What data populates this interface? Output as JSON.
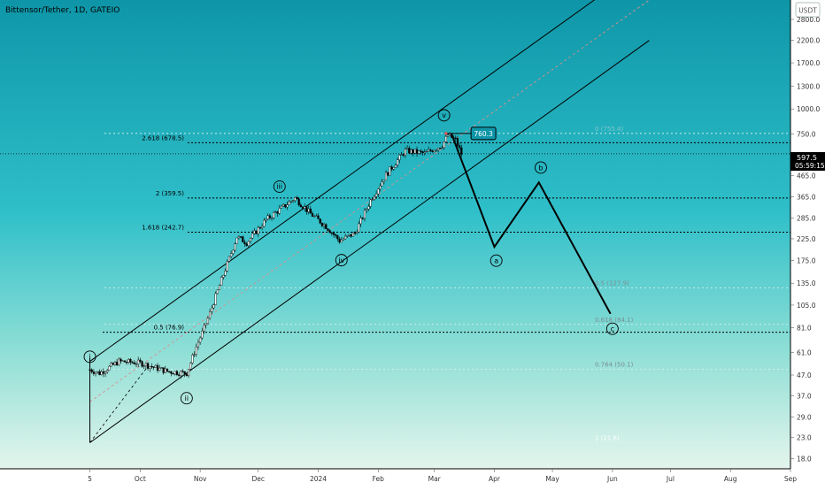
{
  "chart_title": "Bittensor/Tether, 1D, GATEIO",
  "currency_badge": "USDT",
  "last_price": "597.5",
  "countdown": "05:59:15",
  "price_flag_label": "760.3",
  "colors": {
    "bg_top": "#0e96a8",
    "bg_mid": "#2fbfc9",
    "bg_bottom": "#dff3ea",
    "axis_bg": "#ffffff",
    "ink": "#000000",
    "fib_text": "#ffffff"
  },
  "chart_data": {
    "type": "candlestick",
    "scale": "log",
    "ylim": [
      16,
      3500
    ],
    "y_ticks": [
      {
        "v": 18.0,
        "label": "18.0"
      },
      {
        "v": 23.0,
        "label": "23.0"
      },
      {
        "v": 29.0,
        "label": "29.0"
      },
      {
        "v": 37.0,
        "label": "37.0"
      },
      {
        "v": 47.0,
        "label": "47.0"
      },
      {
        "v": 61.0,
        "label": "61.0"
      },
      {
        "v": 81.0,
        "label": "81.0"
      },
      {
        "v": 105.0,
        "label": "105.0"
      },
      {
        "v": 135.0,
        "label": "135.0"
      },
      {
        "v": 175.0,
        "label": "175.0"
      },
      {
        "v": 225.0,
        "label": "225.0"
      },
      {
        "v": 285.0,
        "label": "285.0"
      },
      {
        "v": 365.0,
        "label": "365.0"
      },
      {
        "v": 465.0,
        "label": "465.0"
      },
      {
        "v": 750.0,
        "label": "750.0"
      },
      {
        "v": 1000.0,
        "label": "1000.0"
      },
      {
        "v": 1300.0,
        "label": "1300.0"
      },
      {
        "v": 1700.0,
        "label": "1700.0"
      },
      {
        "v": 2200.0,
        "label": "2200.0"
      },
      {
        "v": 2800.0,
        "label": "2800.0"
      }
    ],
    "x_ticks": [
      {
        "d": "2023-09-05",
        "label": "5"
      },
      {
        "d": "2023-10-01",
        "label": "Oct"
      },
      {
        "d": "2023-11-01",
        "label": "Nov"
      },
      {
        "d": "2023-12-01",
        "label": "Dec"
      },
      {
        "d": "2024-01-01",
        "label": "2024"
      },
      {
        "d": "2024-02-01",
        "label": "Feb"
      },
      {
        "d": "2024-03-01",
        "label": "Mar"
      },
      {
        "d": "2024-04-01",
        "label": "Apr"
      },
      {
        "d": "2024-05-01",
        "label": "May"
      },
      {
        "d": "2024-06-01",
        "label": "Jun"
      },
      {
        "d": "2024-07-01",
        "label": "Jul"
      },
      {
        "d": "2024-08-01",
        "label": "Aug"
      },
      {
        "d": "2024-09-01",
        "label": "Sep"
      }
    ],
    "x_range": [
      "2023-08-01",
      "2024-09-01"
    ],
    "price_anchors": [
      [
        "2023-09-05",
        50
      ],
      [
        "2023-09-10",
        48
      ],
      [
        "2023-09-20",
        55
      ],
      [
        "2023-10-01",
        54
      ],
      [
        "2023-10-15",
        49
      ],
      [
        "2023-10-25",
        48
      ],
      [
        "2023-10-30",
        65
      ],
      [
        "2023-11-05",
        90
      ],
      [
        "2023-11-12",
        140
      ],
      [
        "2023-11-20",
        230
      ],
      [
        "2023-11-25",
        215
      ],
      [
        "2023-12-05",
        280
      ],
      [
        "2023-12-15",
        330
      ],
      [
        "2023-12-20",
        360
      ],
      [
        "2023-12-28",
        300
      ],
      [
        "2024-01-05",
        260
      ],
      [
        "2024-01-12",
        220
      ],
      [
        "2024-01-20",
        240
      ],
      [
        "2024-01-28",
        350
      ],
      [
        "2024-02-05",
        470
      ],
      [
        "2024-02-15",
        620
      ],
      [
        "2024-02-25",
        600
      ],
      [
        "2024-03-05",
        660
      ],
      [
        "2024-03-08",
        740
      ],
      [
        "2024-03-12",
        700
      ],
      [
        "2024-03-15",
        597.5
      ]
    ],
    "horizontal_levels": [
      {
        "v": 678.5,
        "label": "2.618 (678.5)",
        "style": "dotted-dark"
      },
      {
        "v": 359.5,
        "label": "2 (359.5)",
        "style": "dotted-dark"
      },
      {
        "v": 242.7,
        "label": "1.618 (242.7)",
        "style": "dotted-dark"
      },
      {
        "v": 76.9,
        "label": "0.5 (76.9)",
        "style": "dotted-dark"
      },
      {
        "v": 755.4,
        "label": "0 (755.4)",
        "style": "dotted-fib"
      },
      {
        "v": 127.9,
        "label": "0.5 (127.9)",
        "style": "dotted-fib"
      },
      {
        "v": 84.1,
        "label": "0.618 (84.1)",
        "style": "dotted-fib"
      },
      {
        "v": 50.1,
        "label": "0.764 (50.1)",
        "style": "dotted-fib"
      },
      {
        "v": 21.6,
        "label": "1 (21.6)",
        "style": "dotted-fib"
      },
      {
        "v": 597.5,
        "label": "",
        "style": "dotted-dark-last"
      }
    ],
    "wave_labels": [
      {
        "label": "i",
        "d": "2023-09-05",
        "v": 58
      },
      {
        "label": "ii",
        "d": "2023-10-25",
        "v": 36
      },
      {
        "label": "iii",
        "d": "2023-12-12",
        "v": 410
      },
      {
        "label": "iv",
        "d": "2024-01-13",
        "v": 176
      },
      {
        "label": "v",
        "d": "2024-03-06",
        "v": 930
      },
      {
        "label": "a",
        "d": "2024-04-02",
        "v": 175
      },
      {
        "label": "b",
        "d": "2024-04-25",
        "v": 510
      },
      {
        "label": "c",
        "d": "2024-06-01",
        "v": 80
      }
    ],
    "projection_path": [
      [
        "2024-03-10",
        745
      ],
      [
        "2024-04-01",
        205
      ],
      [
        "2024-04-24",
        430
      ],
      [
        "2024-05-31",
        95
      ]
    ],
    "channel_lines": [
      [
        [
          "2023-09-05",
          55
        ],
        [
          "2024-06-20",
          5500
        ]
      ],
      [
        [
          "2023-09-05",
          21.6
        ],
        [
          "2024-06-20",
          2200
        ]
      ]
    ],
    "channel_midline": [
      [
        "2023-09-05",
        34.5
      ],
      [
        "2024-06-20",
        3500
      ]
    ],
    "first_impulse": [
      [
        "2023-09-05",
        21.6
      ],
      [
        "2023-09-05",
        57
      ]
    ],
    "flag": {
      "from": [
        "2024-03-07",
        755
      ],
      "to": [
        "2024-03-30",
        755
      ]
    }
  }
}
